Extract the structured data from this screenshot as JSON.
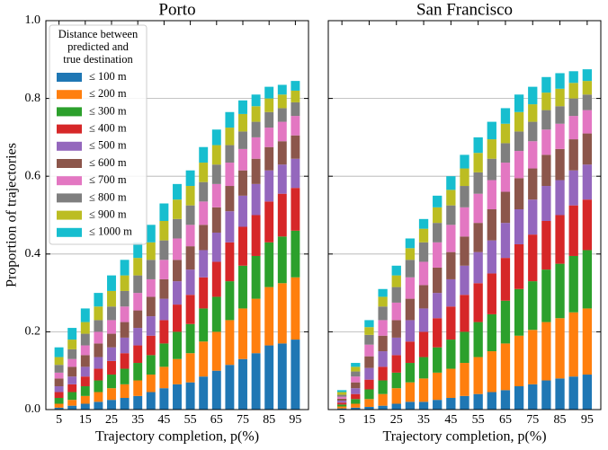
{
  "chart_data": [
    {
      "type": "stacked_bar",
      "title": "Porto",
      "xlabel": "Trajectory completion, p(%)",
      "ylabel": "Proportion of trajectories",
      "x": [
        5,
        10,
        15,
        20,
        25,
        30,
        35,
        40,
        45,
        50,
        55,
        60,
        65,
        70,
        75,
        80,
        85,
        90,
        95
      ],
      "xlim": [
        0,
        100
      ],
      "xticks": [
        5,
        15,
        25,
        35,
        45,
        55,
        65,
        75,
        85,
        95
      ],
      "ylim": [
        0,
        1
      ],
      "yticks": [
        {
          "value": 0,
          "label": "0.0"
        },
        {
          "value": 0.2,
          "label": "0.2"
        },
        {
          "value": 0.4,
          "label": "0.4"
        },
        {
          "value": 0.6,
          "label": "0.6"
        },
        {
          "value": 0.8,
          "label": "0.8"
        },
        {
          "value": 1,
          "label": "1.0"
        }
      ],
      "grid": true,
      "legend": "upper left",
      "legend_title": [
        "Distance between",
        "predicted and",
        "true destination"
      ],
      "series": [
        {
          "name": "≤ 100 m",
          "color": "#1f77b4",
          "values": [
            0.005,
            0.01,
            0.015,
            0.02,
            0.025,
            0.03,
            0.035,
            0.045,
            0.055,
            0.065,
            0.07,
            0.085,
            0.1,
            0.115,
            0.13,
            0.145,
            0.165,
            0.17,
            0.18
          ]
        },
        {
          "name": "≤ 200 m",
          "color": "#ff7f0e",
          "values": [
            0.01,
            0.015,
            0.02,
            0.025,
            0.03,
            0.035,
            0.04,
            0.045,
            0.055,
            0.065,
            0.075,
            0.09,
            0.1,
            0.115,
            0.13,
            0.14,
            0.15,
            0.155,
            0.16
          ]
        },
        {
          "name": "≤ 300 m",
          "color": "#2ca02c",
          "values": [
            0.015,
            0.02,
            0.025,
            0.03,
            0.035,
            0.04,
            0.045,
            0.05,
            0.06,
            0.07,
            0.075,
            0.085,
            0.09,
            0.1,
            0.11,
            0.11,
            0.115,
            0.12,
            0.12
          ]
        },
        {
          "name": "≤ 400 m",
          "color": "#d62728",
          "values": [
            0.015,
            0.02,
            0.025,
            0.03,
            0.035,
            0.04,
            0.045,
            0.05,
            0.06,
            0.07,
            0.075,
            0.08,
            0.09,
            0.1,
            0.1,
            0.105,
            0.105,
            0.11,
            0.11
          ]
        },
        {
          "name": "≤ 500 m",
          "color": "#9467bd",
          "values": [
            0.015,
            0.02,
            0.025,
            0.03,
            0.035,
            0.04,
            0.045,
            0.05,
            0.055,
            0.06,
            0.065,
            0.07,
            0.075,
            0.08,
            0.08,
            0.08,
            0.08,
            0.075,
            0.075
          ]
        },
        {
          "name": "≤ 600 m",
          "color": "#8c564b",
          "values": [
            0.02,
            0.025,
            0.03,
            0.035,
            0.035,
            0.04,
            0.045,
            0.05,
            0.05,
            0.055,
            0.06,
            0.065,
            0.065,
            0.065,
            0.065,
            0.065,
            0.06,
            0.06,
            0.06
          ]
        },
        {
          "name": "≤ 700 m",
          "color": "#e377c2",
          "values": [
            0.015,
            0.02,
            0.025,
            0.03,
            0.035,
            0.04,
            0.045,
            0.045,
            0.05,
            0.055,
            0.055,
            0.06,
            0.06,
            0.06,
            0.055,
            0.055,
            0.05,
            0.05,
            0.05
          ]
        },
        {
          "name": "≤ 800 m",
          "color": "#7f7f7f",
          "values": [
            0.02,
            0.025,
            0.03,
            0.03,
            0.035,
            0.04,
            0.045,
            0.05,
            0.05,
            0.05,
            0.05,
            0.05,
            0.05,
            0.045,
            0.045,
            0.04,
            0.04,
            0.035,
            0.035
          ]
        },
        {
          "name": "≤ 900 m",
          "color": "#bcbd22",
          "values": [
            0.02,
            0.025,
            0.03,
            0.035,
            0.04,
            0.04,
            0.045,
            0.045,
            0.05,
            0.05,
            0.05,
            0.05,
            0.05,
            0.045,
            0.045,
            0.04,
            0.035,
            0.035,
            0.03
          ]
        },
        {
          "name": "≤ 1000 m",
          "color": "#17becf",
          "values": [
            0.025,
            0.03,
            0.035,
            0.035,
            0.04,
            0.04,
            0.04,
            0.045,
            0.045,
            0.04,
            0.04,
            0.04,
            0.04,
            0.04,
            0.035,
            0.03,
            0.03,
            0.025,
            0.025
          ]
        }
      ]
    },
    {
      "type": "stacked_bar",
      "title": "San Francisco",
      "xlabel": "Trajectory completion, p(%)",
      "x": [
        5,
        10,
        15,
        20,
        25,
        30,
        35,
        40,
        45,
        50,
        55,
        60,
        65,
        70,
        75,
        80,
        85,
        90,
        95
      ],
      "xlim": [
        0,
        100
      ],
      "xticks": [
        5,
        15,
        25,
        35,
        45,
        55,
        65,
        75,
        85,
        95
      ],
      "ylim": [
        0,
        1
      ],
      "yticks": [
        0,
        0.2,
        0.4,
        0.6,
        0.8,
        1
      ],
      "grid": true,
      "series": [
        {
          "color": "#1f77b4",
          "values": [
            0.003,
            0.005,
            0.007,
            0.01,
            0.015,
            0.02,
            0.02,
            0.025,
            0.03,
            0.035,
            0.04,
            0.045,
            0.05,
            0.06,
            0.065,
            0.075,
            0.08,
            0.085,
            0.09
          ]
        },
        {
          "color": "#ff7f0e",
          "values": [
            0.005,
            0.01,
            0.02,
            0.03,
            0.04,
            0.05,
            0.06,
            0.07,
            0.075,
            0.085,
            0.095,
            0.105,
            0.12,
            0.13,
            0.14,
            0.15,
            0.155,
            0.165,
            0.17
          ]
        },
        {
          "color": "#2ca02c",
          "values": [
            0.005,
            0.012,
            0.025,
            0.035,
            0.04,
            0.05,
            0.055,
            0.065,
            0.075,
            0.08,
            0.09,
            0.095,
            0.11,
            0.12,
            0.125,
            0.135,
            0.14,
            0.145,
            0.15
          ]
        },
        {
          "color": "#d62728",
          "values": [
            0.005,
            0.013,
            0.025,
            0.035,
            0.045,
            0.055,
            0.065,
            0.075,
            0.085,
            0.095,
            0.1,
            0.105,
            0.11,
            0.115,
            0.12,
            0.125,
            0.125,
            0.13,
            0.13
          ]
        },
        {
          "color": "#9467bd",
          "values": [
            0.005,
            0.015,
            0.03,
            0.04,
            0.045,
            0.055,
            0.06,
            0.065,
            0.07,
            0.075,
            0.08,
            0.085,
            0.09,
            0.09,
            0.09,
            0.09,
            0.09,
            0.09,
            0.09
          ]
        },
        {
          "color": "#8c564b",
          "values": [
            0.005,
            0.015,
            0.03,
            0.04,
            0.045,
            0.055,
            0.06,
            0.065,
            0.07,
            0.075,
            0.075,
            0.08,
            0.08,
            0.08,
            0.08,
            0.08,
            0.08,
            0.08,
            0.08
          ]
        },
        {
          "color": "#e377c2",
          "values": [
            0.005,
            0.015,
            0.03,
            0.04,
            0.045,
            0.055,
            0.06,
            0.065,
            0.07,
            0.075,
            0.075,
            0.075,
            0.075,
            0.07,
            0.07,
            0.065,
            0.065,
            0.06,
            0.06
          ]
        },
        {
          "color": "#7f7f7f",
          "values": [
            0.005,
            0.013,
            0.025,
            0.035,
            0.04,
            0.045,
            0.05,
            0.05,
            0.05,
            0.055,
            0.055,
            0.055,
            0.05,
            0.05,
            0.05,
            0.05,
            0.045,
            0.045,
            0.04
          ]
        },
        {
          "color": "#bcbd22",
          "values": [
            0.007,
            0.012,
            0.02,
            0.025,
            0.03,
            0.03,
            0.035,
            0.04,
            0.04,
            0.045,
            0.05,
            0.05,
            0.05,
            0.05,
            0.045,
            0.045,
            0.045,
            0.04,
            0.035
          ]
        },
        {
          "color": "#17becf",
          "values": [
            0.005,
            0.01,
            0.018,
            0.02,
            0.025,
            0.025,
            0.025,
            0.03,
            0.035,
            0.035,
            0.04,
            0.045,
            0.04,
            0.045,
            0.045,
            0.04,
            0.04,
            0.03,
            0.03
          ]
        }
      ]
    }
  ]
}
